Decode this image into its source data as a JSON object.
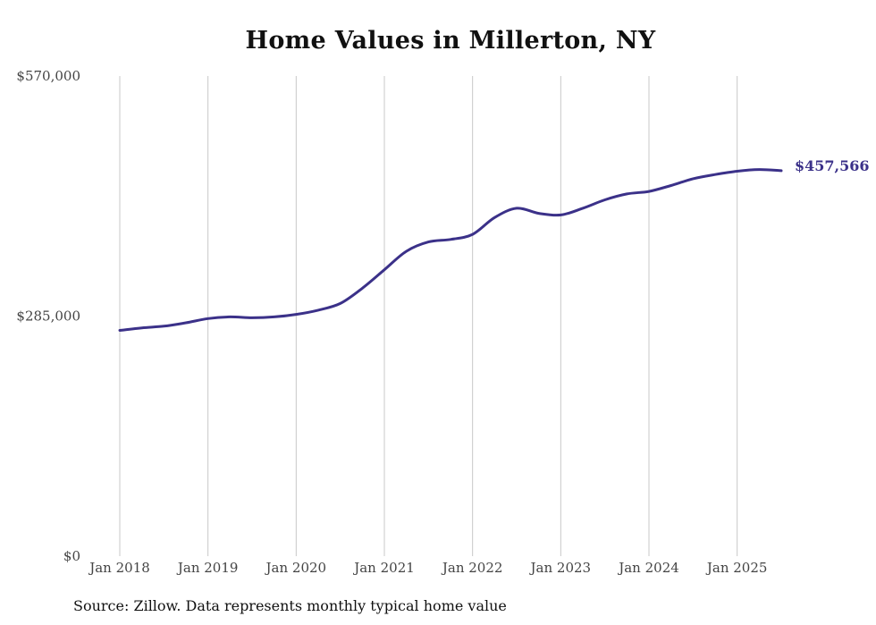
{
  "chart_data": {
    "type": "line",
    "title": "Home Values in Millerton, NY",
    "source": "Source: Zillow. Data represents monthly typical home value",
    "xlabel": "",
    "ylabel": "",
    "ylim": [
      0,
      570000
    ],
    "x_range": [
      "2018-01",
      "2025-07"
    ],
    "y_ticks": [
      {
        "value": 0,
        "label": "$0"
      },
      {
        "value": 285000,
        "label": "$285,000"
      },
      {
        "value": 570000,
        "label": "$570,000"
      }
    ],
    "x_ticks": [
      {
        "date": "2018-01",
        "label": "Jan 2018"
      },
      {
        "date": "2019-01",
        "label": "Jan 2019"
      },
      {
        "date": "2020-01",
        "label": "Jan 2020"
      },
      {
        "date": "2021-01",
        "label": "Jan 2021"
      },
      {
        "date": "2022-01",
        "label": "Jan 2022"
      },
      {
        "date": "2023-01",
        "label": "Jan 2023"
      },
      {
        "date": "2024-01",
        "label": "Jan 2024"
      },
      {
        "date": "2025-01",
        "label": "Jan 2025"
      }
    ],
    "grid": {
      "vertical": true,
      "horizontal": false
    },
    "colors": {
      "line": "#3b3189",
      "grid": "#c8c8c8",
      "text": "#444444"
    },
    "end_label": "$457,566",
    "series": [
      {
        "color": "#3b3189",
        "points": [
          [
            "2018-01",
            268000
          ],
          [
            "2018-04",
            271000
          ],
          [
            "2018-07",
            273000
          ],
          [
            "2018-10",
            277000
          ],
          [
            "2019-01",
            282000
          ],
          [
            "2019-04",
            284000
          ],
          [
            "2019-07",
            283000
          ],
          [
            "2019-10",
            284000
          ],
          [
            "2020-01",
            287000
          ],
          [
            "2020-04",
            292000
          ],
          [
            "2020-07",
            300000
          ],
          [
            "2020-10",
            318000
          ],
          [
            "2021-01",
            340000
          ],
          [
            "2021-04",
            362000
          ],
          [
            "2021-07",
            373000
          ],
          [
            "2021-10",
            376000
          ],
          [
            "2022-01",
            382000
          ],
          [
            "2022-04",
            402000
          ],
          [
            "2022-07",
            413000
          ],
          [
            "2022-10",
            407000
          ],
          [
            "2023-01",
            405000
          ],
          [
            "2023-04",
            413000
          ],
          [
            "2023-07",
            423000
          ],
          [
            "2023-10",
            430000
          ],
          [
            "2024-01",
            433000
          ],
          [
            "2024-04",
            440000
          ],
          [
            "2024-07",
            448000
          ],
          [
            "2024-10",
            453000
          ],
          [
            "2025-01",
            457000
          ],
          [
            "2025-04",
            459000
          ],
          [
            "2025-07",
            457566
          ]
        ]
      }
    ]
  }
}
